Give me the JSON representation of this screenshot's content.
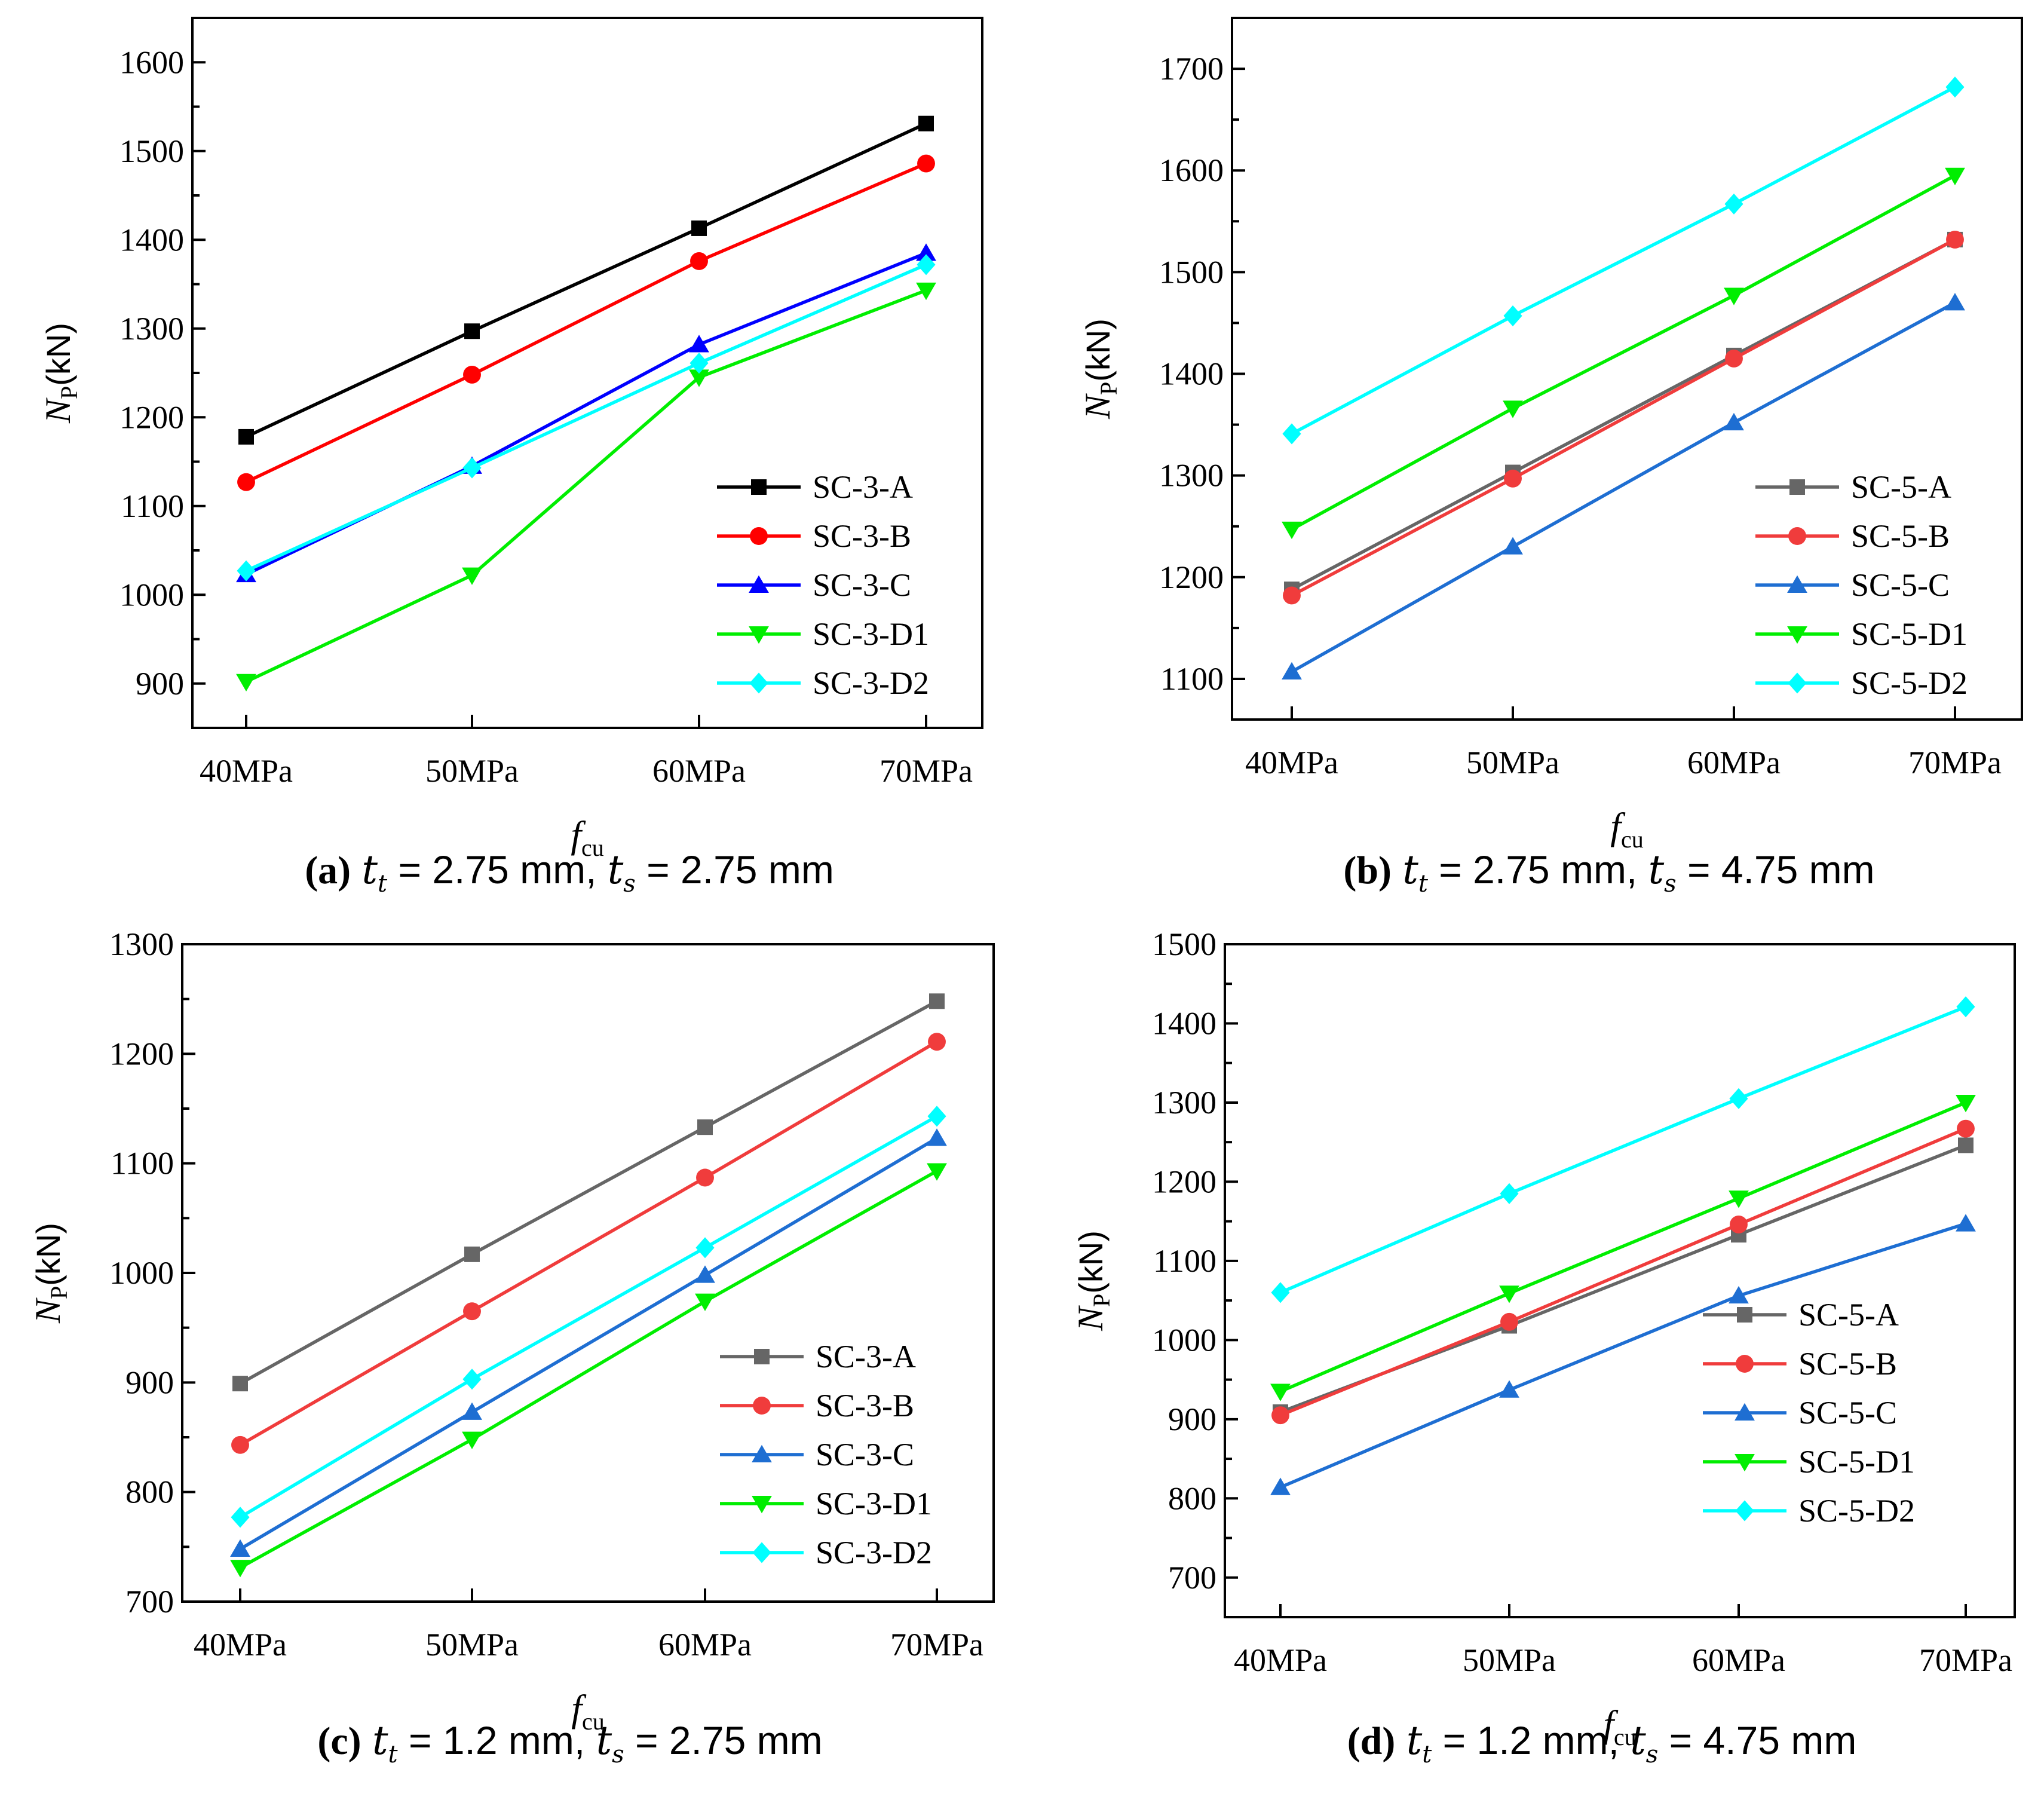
{
  "chart_data": [
    {
      "id": "a",
      "type": "line",
      "categories": [
        "40MPa",
        "50MPa",
        "60MPa",
        "70MPa"
      ],
      "xlabel": "f",
      "xlabel_sub": "cu",
      "ylabel": "N",
      "ylabel_sub": "P",
      "ylabel_unit": "(kN)",
      "ylim": [
        850,
        1650
      ],
      "yticks": [
        900,
        1000,
        1100,
        1200,
        1300,
        1400,
        1500,
        1600
      ],
      "legend_position": "bottom-right",
      "series": [
        {
          "name": "SC-3-A",
          "color": "#000000",
          "marker": "square",
          "values": [
            1178,
            1297,
            1413,
            1531
          ]
        },
        {
          "name": "SC-3-B",
          "color": "#ff0000",
          "marker": "circle",
          "values": [
            1127,
            1248,
            1376,
            1486
          ]
        },
        {
          "name": "SC-3-C",
          "color": "#0000ff",
          "marker": "triangle-up",
          "values": [
            1023,
            1145,
            1282,
            1385
          ]
        },
        {
          "name": "SC-3-D1",
          "color": "#00ee00",
          "marker": "triangle-down",
          "values": [
            902,
            1022,
            1245,
            1343
          ]
        },
        {
          "name": "SC-3-D2",
          "color": "#00ffff",
          "marker": "diamond",
          "values": [
            1027,
            1143,
            1261,
            1372
          ]
        }
      ],
      "caption": {
        "label": "(a)",
        "tt": "2.75",
        "ts": "2.75",
        "eq": " = ",
        "unit": " mm",
        "sep": ", "
      }
    },
    {
      "id": "b",
      "type": "line",
      "categories": [
        "40MPa",
        "50MPa",
        "60MPa",
        "70MPa"
      ],
      "xlabel": "f",
      "xlabel_sub": "cu",
      "ylabel": "N",
      "ylabel_sub": "P",
      "ylabel_unit": "(kN)",
      "ylim": [
        1060,
        1750
      ],
      "yticks": [
        1100,
        1200,
        1300,
        1400,
        1500,
        1600,
        1700
      ],
      "legend_position": "bottom-right",
      "series": [
        {
          "name": "SC-5-A",
          "color": "#666666",
          "marker": "square",
          "values": [
            1188,
            1303,
            1418,
            1532
          ]
        },
        {
          "name": "SC-5-B",
          "color": "#f03c3c",
          "marker": "circle",
          "values": [
            1182,
            1297,
            1415,
            1532
          ]
        },
        {
          "name": "SC-5-C",
          "color": "#1e6ed2",
          "marker": "triangle-up",
          "values": [
            1107,
            1230,
            1352,
            1470
          ]
        },
        {
          "name": "SC-5-D1",
          "color": "#00ee00",
          "marker": "triangle-down",
          "values": [
            1247,
            1366,
            1477,
            1595
          ]
        },
        {
          "name": "SC-5-D2",
          "color": "#00ffff",
          "marker": "diamond",
          "values": [
            1341,
            1457,
            1567,
            1682
          ]
        }
      ],
      "caption": {
        "label": "(b)",
        "tt": "2.75",
        "ts": "4.75",
        "eq": " = ",
        "unit": " mm",
        "sep": ", "
      }
    },
    {
      "id": "c",
      "type": "line",
      "categories": [
        "40MPa",
        "50MPa",
        "60MPa",
        "70MPa"
      ],
      "xlabel": "f",
      "xlabel_sub": "cu",
      "ylabel": "N",
      "ylabel_sub": "P",
      "ylabel_unit": "(kN)",
      "ylim": [
        700,
        1300
      ],
      "yticks": [
        700,
        800,
        900,
        1000,
        1100,
        1200,
        1300
      ],
      "legend_position": "bottom-right",
      "series": [
        {
          "name": "SC-3-A",
          "color": "#666666",
          "marker": "square",
          "values": [
            899,
            1017,
            1133,
            1248
          ]
        },
        {
          "name": "SC-3-B",
          "color": "#f03c3c",
          "marker": "circle",
          "values": [
            843,
            965,
            1087,
            1211
          ]
        },
        {
          "name": "SC-3-C",
          "color": "#1e6ed2",
          "marker": "triangle-up",
          "values": [
            748,
            873,
            998,
            1123
          ]
        },
        {
          "name": "SC-3-D1",
          "color": "#00ee00",
          "marker": "triangle-down",
          "values": [
            731,
            848,
            974,
            1093
          ]
        },
        {
          "name": "SC-3-D2",
          "color": "#00ffff",
          "marker": "diamond",
          "values": [
            777,
            903,
            1023,
            1143
          ]
        }
      ],
      "caption": {
        "label": "(c)",
        "tt": "1.2",
        "ts": "2.75",
        "eq": " = ",
        "unit": " mm",
        "sep": ", "
      }
    },
    {
      "id": "d",
      "type": "line",
      "categories": [
        "40MPa",
        "50MPa",
        "60MPa",
        "70MPa"
      ],
      "xlabel": "f",
      "xlabel_sub": "cu",
      "ylabel": "N",
      "ylabel_sub": "P",
      "ylabel_unit": "(kN)",
      "ylim": [
        650,
        1500
      ],
      "yticks": [
        700,
        800,
        900,
        1000,
        1100,
        1200,
        1300,
        1400,
        1500
      ],
      "legend_position": "bottom-right",
      "series": [
        {
          "name": "SC-5-A",
          "color": "#666666",
          "marker": "square",
          "values": [
            909,
            1018,
            1133,
            1246
          ]
        },
        {
          "name": "SC-5-B",
          "color": "#f03c3c",
          "marker": "circle",
          "values": [
            905,
            1023,
            1146,
            1267
          ]
        },
        {
          "name": "SC-5-C",
          "color": "#1e6ed2",
          "marker": "triangle-up",
          "values": [
            814,
            937,
            1056,
            1147
          ]
        },
        {
          "name": "SC-5-D1",
          "color": "#00ee00",
          "marker": "triangle-down",
          "values": [
            935,
            1059,
            1179,
            1300
          ]
        },
        {
          "name": "SC-5-D2",
          "color": "#00ffff",
          "marker": "diamond",
          "values": [
            1060,
            1185,
            1305,
            1421
          ]
        }
      ],
      "caption": {
        "label": "(d)",
        "tt": "1.2",
        "ts": "4.75",
        "eq": " = ",
        "unit": " mm",
        "sep": ", "
      }
    }
  ]
}
